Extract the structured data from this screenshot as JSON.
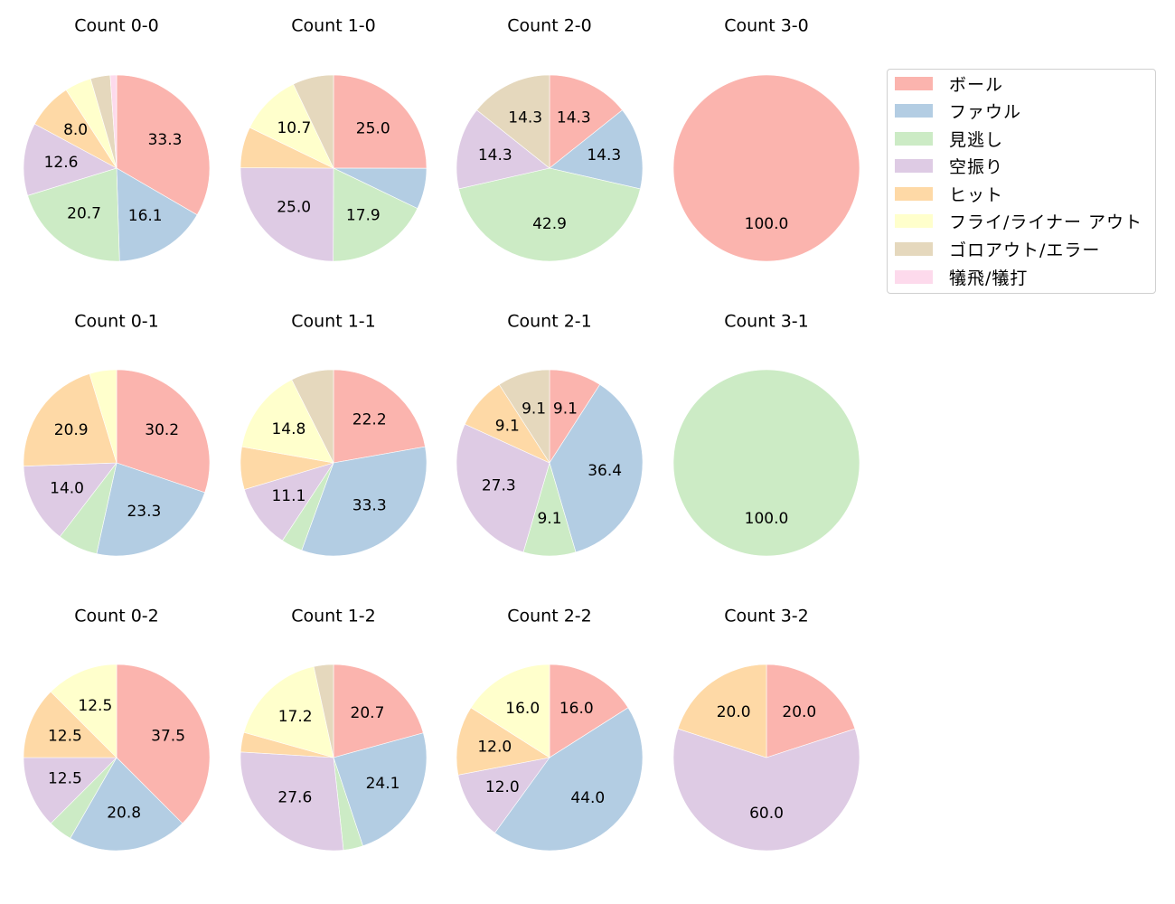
{
  "chart_data": {
    "type": "pie",
    "layout": {
      "rows": 3,
      "cols": 4,
      "start_angle": 90,
      "direction": "clockwise",
      "label_format": "%.1f"
    },
    "categories": [
      "ボール",
      "ファウル",
      "見逃し",
      "空振り",
      "ヒット",
      "フライ/ライナー アウト",
      "ゴロアウト/エラー",
      "犠飛/犠打"
    ],
    "colors": [
      "#fbb4ae",
      "#b3cde3",
      "#ccebc5",
      "#decbe4",
      "#fed9a6",
      "#ffffcc",
      "#e5d8bd",
      "#fddaec"
    ],
    "legend": {
      "position": "upper right",
      "entries": [
        "ボール",
        "ファウル",
        "見逃し",
        "空振り",
        "ヒット",
        "フライ/ライナー アウト",
        "ゴロアウト/エラー",
        "犠飛/犠打"
      ]
    },
    "charts": [
      {
        "title": "Count 0-0",
        "values": [
          33.3,
          16.1,
          20.7,
          12.6,
          8.0,
          4.6,
          3.4,
          1.1
        ],
        "labels_shown": [
          "33.3",
          "16.1",
          "20.7",
          "12.6",
          "8.0",
          "",
          "",
          ""
        ]
      },
      {
        "title": "Count 1-0",
        "values": [
          25.0,
          7.1,
          17.9,
          25.0,
          7.1,
          10.7,
          7.1,
          0
        ],
        "labels_shown": [
          "25.0",
          "",
          "17.9",
          "25.0",
          "",
          "10.7",
          "",
          ""
        ]
      },
      {
        "title": "Count 2-0",
        "values": [
          14.3,
          14.3,
          42.9,
          14.3,
          0,
          0,
          14.3,
          0
        ],
        "labels_shown": [
          "14.3",
          "14.3",
          "42.9",
          "14.3",
          "",
          "",
          "14.3",
          ""
        ]
      },
      {
        "title": "Count 3-0",
        "values": [
          100.0,
          0,
          0,
          0,
          0,
          0,
          0,
          0
        ],
        "labels_shown": [
          "100.0",
          "",
          "",
          "",
          "",
          "",
          "",
          ""
        ]
      },
      {
        "title": "Count 0-1",
        "values": [
          30.2,
          23.3,
          7.0,
          14.0,
          20.9,
          4.7,
          0,
          0
        ],
        "labels_shown": [
          "30.2",
          "23.3",
          "",
          "14.0",
          "20.9",
          "",
          "",
          ""
        ]
      },
      {
        "title": "Count 1-1",
        "values": [
          22.2,
          33.3,
          3.7,
          11.1,
          7.4,
          14.8,
          7.4,
          0
        ],
        "labels_shown": [
          "22.2",
          "33.3",
          "",
          "11.1",
          "",
          "14.8",
          "",
          ""
        ]
      },
      {
        "title": "Count 2-1",
        "values": [
          9.1,
          36.4,
          9.1,
          27.3,
          9.1,
          0,
          9.1,
          0
        ],
        "labels_shown": [
          "9.1",
          "36.4",
          "9.1",
          "27.3",
          "9.1",
          "",
          "9.1",
          ""
        ]
      },
      {
        "title": "Count 3-1",
        "values": [
          0,
          0,
          100.0,
          0,
          0,
          0,
          0,
          0
        ],
        "labels_shown": [
          "",
          "",
          "100.0",
          "",
          "",
          "",
          "",
          ""
        ]
      },
      {
        "title": "Count 0-2",
        "values": [
          37.5,
          20.8,
          4.2,
          12.5,
          12.5,
          12.5,
          0,
          0
        ],
        "labels_shown": [
          "37.5",
          "20.8",
          "",
          "12.5",
          "12.5",
          "12.5",
          "",
          ""
        ]
      },
      {
        "title": "Count 1-2",
        "values": [
          20.7,
          24.1,
          3.4,
          27.6,
          3.4,
          17.2,
          3.4,
          0
        ],
        "labels_shown": [
          "20.7",
          "24.1",
          "",
          "27.6",
          "",
          "17.2",
          "",
          ""
        ]
      },
      {
        "title": "Count 2-2",
        "values": [
          16.0,
          44.0,
          0,
          12.0,
          12.0,
          16.0,
          0,
          0
        ],
        "labels_shown": [
          "16.0",
          "44.0",
          "",
          "12.0",
          "12.0",
          "16.0",
          "",
          ""
        ]
      },
      {
        "title": "Count 3-2",
        "values": [
          20.0,
          0,
          0,
          60.0,
          20.0,
          0,
          0,
          0
        ],
        "labels_shown": [
          "20.0",
          "",
          "",
          "60.0",
          "20.0",
          "",
          "",
          ""
        ]
      }
    ]
  }
}
